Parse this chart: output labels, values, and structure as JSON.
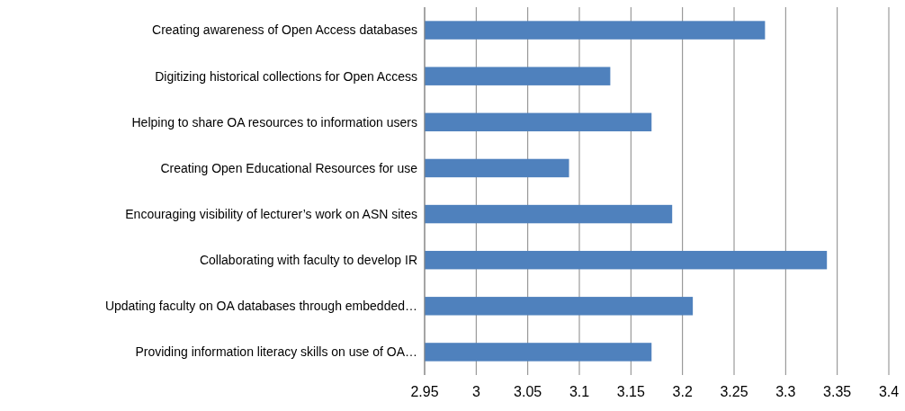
{
  "chart_data": {
    "type": "bar",
    "orientation": "horizontal",
    "categories": [
      "Creating awareness of Open Access databases",
      "Digitizing historical collections for Open Access",
      "Helping to share OA resources to information users",
      "Creating Open Educational Resources for use",
      "Encouraging visibility of lecturer’s work on ASN sites",
      "Collaborating with faculty to develop IR",
      "Updating faculty on OA databases through embedded…",
      "Providing information literacy skills on use of OA…"
    ],
    "values": [
      3.28,
      3.13,
      3.17,
      3.09,
      3.19,
      3.34,
      3.21,
      3.17
    ],
    "color": "#4f81bd",
    "xlim": [
      2.95,
      3.4
    ],
    "xticks": [
      2.95,
      3,
      3.05,
      3.1,
      3.15,
      3.2,
      3.25,
      3.3,
      3.35,
      3.4
    ],
    "grid": "x"
  }
}
